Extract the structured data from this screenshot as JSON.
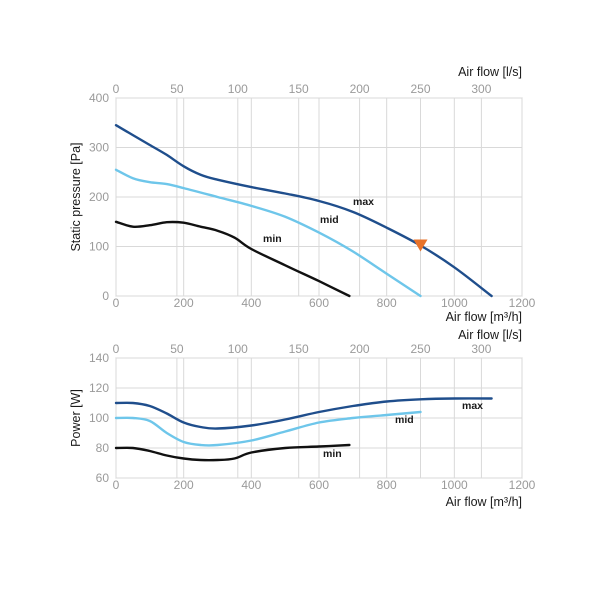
{
  "chart_data": [
    {
      "type": "line",
      "ylabel": "Static pressure [Pa]",
      "xlabel": "Air flow [m³/h]",
      "x2label": "Air flow [l/s]",
      "xlim": [
        0,
        1200
      ],
      "ylim": [
        0,
        400
      ],
      "x_ticks": [
        0,
        200,
        400,
        600,
        800,
        1000,
        1200
      ],
      "x2_ticks": [
        0,
        50,
        100,
        150,
        200,
        250,
        300
      ],
      "y_ticks": [
        0,
        100,
        200,
        300,
        400
      ],
      "grid": true,
      "series": [
        {
          "name": "max",
          "color": "#1f4e8c",
          "x": [
            0,
            50,
            100,
            150,
            200,
            250,
            300,
            400,
            500,
            600,
            700,
            800,
            900,
            1000,
            1110
          ],
          "y": [
            345,
            325,
            305,
            285,
            262,
            245,
            235,
            220,
            207,
            192,
            170,
            138,
            102,
            58,
            0
          ]
        },
        {
          "name": "mid",
          "color": "#6ec6ea",
          "x": [
            0,
            50,
            100,
            150,
            200,
            300,
            400,
            500,
            600,
            700,
            800,
            900
          ],
          "y": [
            255,
            238,
            230,
            226,
            218,
            200,
            182,
            160,
            128,
            90,
            45,
            0
          ]
        },
        {
          "name": "min",
          "color": "#111111",
          "x": [
            0,
            50,
            100,
            150,
            200,
            250,
            300,
            350,
            400,
            500,
            600,
            690
          ],
          "y": [
            150,
            140,
            143,
            149,
            148,
            140,
            132,
            118,
            95,
            62,
            30,
            0
          ]
        }
      ],
      "marker": {
        "x": 900,
        "y": 100,
        "shape": "triangle-down",
        "color": "#e8732a"
      }
    },
    {
      "type": "line",
      "ylabel": "Power [W]",
      "xlabel": "Air flow [m³/h]",
      "x2label": "Air flow [l/s]",
      "xlim": [
        0,
        1200
      ],
      "ylim": [
        60,
        140
      ],
      "x_ticks": [
        0,
        200,
        400,
        600,
        800,
        1000,
        1200
      ],
      "x2_ticks": [
        0,
        50,
        100,
        150,
        200,
        250,
        300
      ],
      "y_ticks": [
        60,
        80,
        100,
        120,
        140
      ],
      "grid": true,
      "series": [
        {
          "name": "max",
          "color": "#1f4e8c",
          "x": [
            0,
            50,
            100,
            150,
            200,
            250,
            300,
            400,
            500,
            600,
            700,
            800,
            900,
            1000,
            1110
          ],
          "y": [
            110,
            110,
            108,
            103,
            97,
            94,
            93,
            95,
            99,
            104,
            108,
            111,
            112.5,
            113,
            113
          ]
        },
        {
          "name": "mid",
          "color": "#6ec6ea",
          "x": [
            0,
            50,
            100,
            150,
            200,
            250,
            300,
            400,
            500,
            600,
            700,
            800,
            900
          ],
          "y": [
            100,
            100,
            98,
            90,
            84,
            82,
            82,
            85,
            91,
            97,
            100,
            102,
            104
          ]
        },
        {
          "name": "min",
          "color": "#111111",
          "x": [
            0,
            50,
            100,
            150,
            200,
            250,
            300,
            350,
            400,
            500,
            600,
            690
          ],
          "y": [
            80,
            80,
            78,
            75,
            73,
            72,
            72,
            73,
            77,
            80,
            81,
            82
          ]
        }
      ]
    }
  ]
}
